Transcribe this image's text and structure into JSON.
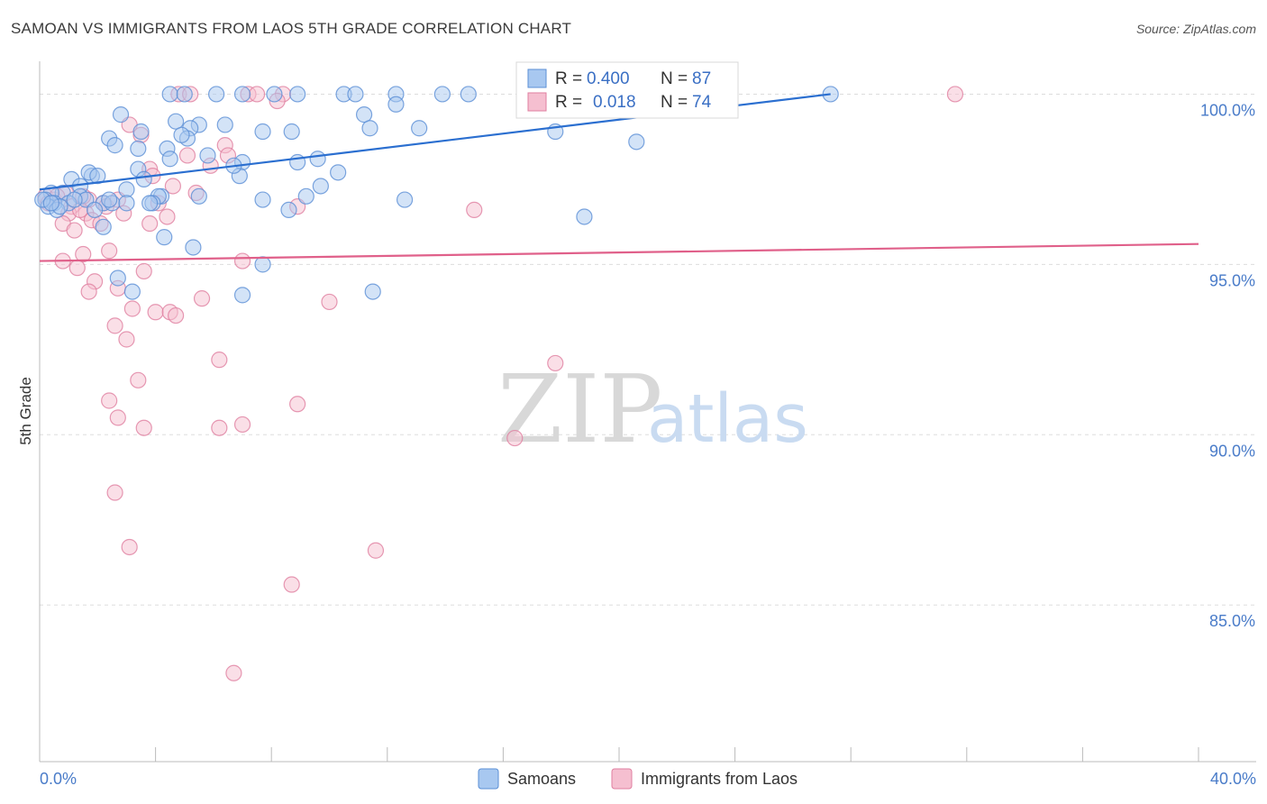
{
  "title": "SAMOAN VS IMMIGRANTS FROM LAOS 5TH GRADE CORRELATION CHART",
  "source": "Source: ZipAtlas.com",
  "watermark": {
    "zip": "ZIP",
    "atlas": "atlas"
  },
  "colors": {
    "blue_fill": "#a8c8f0",
    "blue_stroke": "#5b8fd6",
    "blue_line": "#2b6fd0",
    "pink_fill": "#f5bfd0",
    "pink_stroke": "#e07fa0",
    "pink_line": "#e0608a",
    "axis_text": "#4a7cc9",
    "grid": "#dddddd"
  },
  "stats": [
    {
      "r_label": "R =",
      "r_value": "0.400",
      "n_label": "N =",
      "n_value": "87"
    },
    {
      "r_label": "R =",
      "r_value": "0.018",
      "n_label": "N =",
      "n_value": "74"
    }
  ],
  "chart_data": {
    "type": "scatter",
    "title": "SAMOAN VS IMMIGRANTS FROM LAOS 5TH GRADE CORRELATION CHART",
    "ylabel": "5th Grade",
    "xlabel": "",
    "xlim": [
      0,
      40
    ],
    "ylim": [
      80.4,
      100.7
    ],
    "x_tick_labels": [
      "0.0%",
      "40.0%"
    ],
    "y_ticks": [
      85,
      90,
      95,
      100
    ],
    "y_tick_labels": [
      "85.0%",
      "90.0%",
      "95.0%",
      "100.0%"
    ],
    "legend": [
      "Samoans",
      "Immigrants from Laos"
    ],
    "series": [
      {
        "name": "Samoans",
        "color": "#5b8fd6",
        "trend": {
          "x": [
            0,
            27.3
          ],
          "y": [
            97.2,
            100.0
          ]
        },
        "points": [
          [
            4.5,
            100
          ],
          [
            5.0,
            100
          ],
          [
            6.1,
            100
          ],
          [
            7.0,
            100
          ],
          [
            8.1,
            100
          ],
          [
            8.9,
            100
          ],
          [
            10.5,
            100
          ],
          [
            10.9,
            100
          ],
          [
            12.3,
            100
          ],
          [
            13.9,
            100
          ],
          [
            14.8,
            100
          ],
          [
            27.3,
            100
          ],
          [
            21.3,
            99.8
          ],
          [
            2.8,
            99.4
          ],
          [
            4.7,
            99.2
          ],
          [
            5.5,
            99.1
          ],
          [
            6.4,
            99.1
          ],
          [
            11.2,
            99.4
          ],
          [
            3.5,
            98.9
          ],
          [
            5.2,
            99.0
          ],
          [
            7.7,
            98.9
          ],
          [
            8.7,
            98.9
          ],
          [
            11.4,
            99.0
          ],
          [
            13.1,
            99.0
          ],
          [
            2.4,
            98.7
          ],
          [
            5.1,
            98.7
          ],
          [
            2.6,
            98.5
          ],
          [
            4.4,
            98.4
          ],
          [
            3.4,
            98.4
          ],
          [
            5.8,
            98.2
          ],
          [
            17.8,
            98.9
          ],
          [
            20.6,
            98.6
          ],
          [
            4.5,
            98.1
          ],
          [
            8.9,
            98.0
          ],
          [
            3.4,
            97.8
          ],
          [
            7.0,
            98.0
          ],
          [
            1.8,
            97.6
          ],
          [
            1.1,
            97.5
          ],
          [
            1.7,
            97.7
          ],
          [
            3.6,
            97.5
          ],
          [
            6.9,
            97.6
          ],
          [
            10.3,
            97.7
          ],
          [
            2.0,
            97.6
          ],
          [
            1.4,
            97.3
          ],
          [
            0.8,
            97.1
          ],
          [
            3.0,
            97.2
          ],
          [
            9.7,
            97.3
          ],
          [
            1.4,
            97.0
          ],
          [
            4.2,
            97.0
          ],
          [
            4.1,
            97.0
          ],
          [
            7.7,
            96.9
          ],
          [
            9.2,
            97.0
          ],
          [
            12.6,
            96.9
          ],
          [
            0.4,
            97.1
          ],
          [
            0.2,
            96.9
          ],
          [
            1.6,
            96.9
          ],
          [
            2.2,
            96.8
          ],
          [
            0.5,
            96.8
          ],
          [
            1.0,
            96.8
          ],
          [
            2.5,
            96.8
          ],
          [
            3.0,
            96.8
          ],
          [
            3.9,
            96.8
          ],
          [
            0.3,
            96.7
          ],
          [
            0.6,
            96.6
          ],
          [
            1.9,
            96.6
          ],
          [
            8.6,
            96.6
          ],
          [
            18.8,
            96.4
          ],
          [
            2.2,
            96.1
          ],
          [
            4.3,
            95.8
          ],
          [
            5.3,
            95.5
          ],
          [
            7.7,
            95.0
          ],
          [
            2.7,
            94.6
          ],
          [
            3.2,
            94.2
          ],
          [
            7.0,
            94.1
          ],
          [
            11.5,
            94.2
          ],
          [
            0.1,
            96.9
          ],
          [
            0.7,
            96.7
          ],
          [
            1.2,
            96.9
          ],
          [
            2.4,
            96.9
          ],
          [
            3.8,
            96.8
          ],
          [
            0.4,
            96.8
          ],
          [
            5.5,
            97.0
          ],
          [
            6.7,
            97.9
          ],
          [
            9.6,
            98.1
          ],
          [
            4.9,
            98.8
          ],
          [
            12.3,
            99.7
          ],
          [
            16.9,
            99.6
          ]
        ]
      },
      {
        "name": "Immigrants from Laos",
        "color": "#e07fa0",
        "trend": {
          "x": [
            0,
            40
          ],
          "y": [
            95.1,
            95.6
          ]
        },
        "points": [
          [
            4.8,
            100
          ],
          [
            5.2,
            100
          ],
          [
            7.2,
            100
          ],
          [
            7.5,
            100
          ],
          [
            8.4,
            100
          ],
          [
            19.1,
            100
          ],
          [
            31.6,
            100
          ],
          [
            8.2,
            99.8
          ],
          [
            3.1,
            99.1
          ],
          [
            3.5,
            98.8
          ],
          [
            6.4,
            98.5
          ],
          [
            6.5,
            98.2
          ],
          [
            5.1,
            98.2
          ],
          [
            5.9,
            97.9
          ],
          [
            3.8,
            97.8
          ],
          [
            3.9,
            97.6
          ],
          [
            5.4,
            97.1
          ],
          [
            1.7,
            96.9
          ],
          [
            2.2,
            96.8
          ],
          [
            1.1,
            96.7
          ],
          [
            2.3,
            96.7
          ],
          [
            4.1,
            96.8
          ],
          [
            8.9,
            96.7
          ],
          [
            15.0,
            96.6
          ],
          [
            1.0,
            96.5
          ],
          [
            1.6,
            96.5
          ],
          [
            4.4,
            96.4
          ],
          [
            1.8,
            96.3
          ],
          [
            0.8,
            96.2
          ],
          [
            2.1,
            96.2
          ],
          [
            1.2,
            96.0
          ],
          [
            3.8,
            96.2
          ],
          [
            2.4,
            95.4
          ],
          [
            1.5,
            95.3
          ],
          [
            0.8,
            95.1
          ],
          [
            7.0,
            95.1
          ],
          [
            1.3,
            94.9
          ],
          [
            3.6,
            94.8
          ],
          [
            1.9,
            94.5
          ],
          [
            1.7,
            94.2
          ],
          [
            2.7,
            94.3
          ],
          [
            5.6,
            94.0
          ],
          [
            10.0,
            93.9
          ],
          [
            3.2,
            93.7
          ],
          [
            4.0,
            93.6
          ],
          [
            4.5,
            93.6
          ],
          [
            4.7,
            93.5
          ],
          [
            2.6,
            93.2
          ],
          [
            3.0,
            92.8
          ],
          [
            6.2,
            92.2
          ],
          [
            17.8,
            92.1
          ],
          [
            3.4,
            91.6
          ],
          [
            2.4,
            91.0
          ],
          [
            8.9,
            90.9
          ],
          [
            2.7,
            90.5
          ],
          [
            3.6,
            90.2
          ],
          [
            6.2,
            90.2
          ],
          [
            7.0,
            90.3
          ],
          [
            16.4,
            89.9
          ],
          [
            2.6,
            88.3
          ],
          [
            3.1,
            86.7
          ],
          [
            11.6,
            86.6
          ],
          [
            8.7,
            85.6
          ],
          [
            6.7,
            83.0
          ],
          [
            0.2,
            97.0
          ],
          [
            0.5,
            96.9
          ],
          [
            0.9,
            97.1
          ],
          [
            1.5,
            97.0
          ],
          [
            2.7,
            96.9
          ],
          [
            0.3,
            96.8
          ],
          [
            0.6,
            97.0
          ],
          [
            1.4,
            96.6
          ],
          [
            2.9,
            96.5
          ],
          [
            4.6,
            97.3
          ]
        ]
      }
    ]
  }
}
